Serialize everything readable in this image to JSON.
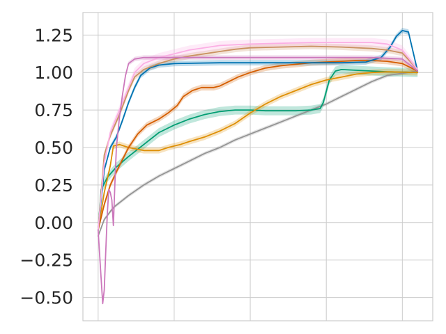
{
  "chart_data": {
    "type": "line",
    "title": "",
    "xlabel": "",
    "ylabel": "",
    "xlim": [
      -0.05,
      1.1
    ],
    "ylim": [
      -0.655,
      1.4
    ],
    "xticks": [
      0,
      0.25,
      0.5,
      0.75,
      1.0
    ],
    "yticks": [
      -0.5,
      -0.25,
      0.0,
      0.25,
      0.5,
      0.75,
      1.0,
      1.25
    ],
    "ytick_labels": [
      "−0.50",
      "−0.25",
      "0.00",
      "0.25",
      "0.50",
      "0.75",
      "1.00",
      "1.25"
    ],
    "grid": true,
    "series": [
      {
        "color": "#949494",
        "band": 0.012,
        "points": [
          [
            0,
            -0.09
          ],
          [
            0.02,
            0.02
          ],
          [
            0.05,
            0.1
          ],
          [
            0.1,
            0.18
          ],
          [
            0.15,
            0.25
          ],
          [
            0.2,
            0.31
          ],
          [
            0.25,
            0.36
          ],
          [
            0.3,
            0.41
          ],
          [
            0.35,
            0.46
          ],
          [
            0.4,
            0.5
          ],
          [
            0.45,
            0.55
          ],
          [
            0.5,
            0.59
          ],
          [
            0.55,
            0.63
          ],
          [
            0.6,
            0.67
          ],
          [
            0.65,
            0.71
          ],
          [
            0.7,
            0.75
          ],
          [
            0.75,
            0.79
          ],
          [
            0.8,
            0.84
          ],
          [
            0.85,
            0.89
          ],
          [
            0.9,
            0.94
          ],
          [
            0.95,
            0.98
          ],
          [
            1.05,
            1.01
          ]
        ]
      },
      {
        "color": "#029e73",
        "band": 0.03,
        "points": [
          [
            0,
            -0.05
          ],
          [
            0.01,
            0.22
          ],
          [
            0.03,
            0.3
          ],
          [
            0.06,
            0.37
          ],
          [
            0.1,
            0.44
          ],
          [
            0.15,
            0.52
          ],
          [
            0.2,
            0.6
          ],
          [
            0.25,
            0.65
          ],
          [
            0.3,
            0.69
          ],
          [
            0.35,
            0.72
          ],
          [
            0.4,
            0.74
          ],
          [
            0.45,
            0.75
          ],
          [
            0.5,
            0.75
          ],
          [
            0.55,
            0.745
          ],
          [
            0.6,
            0.745
          ],
          [
            0.65,
            0.745
          ],
          [
            0.7,
            0.75
          ],
          [
            0.73,
            0.76
          ],
          [
            0.74,
            0.8
          ],
          [
            0.76,
            0.95
          ],
          [
            0.78,
            1.01
          ],
          [
            0.8,
            1.02
          ],
          [
            0.85,
            1.015
          ],
          [
            0.9,
            1.01
          ],
          [
            0.95,
            1.005
          ],
          [
            1.05,
            1.0
          ]
        ]
      },
      {
        "color": "#de8f05",
        "band": 0.02,
        "points": [
          [
            0,
            -0.05
          ],
          [
            0.02,
            0.2
          ],
          [
            0.04,
            0.38
          ],
          [
            0.05,
            0.51
          ],
          [
            0.07,
            0.52
          ],
          [
            0.1,
            0.5
          ],
          [
            0.15,
            0.48
          ],
          [
            0.2,
            0.48
          ],
          [
            0.23,
            0.5
          ],
          [
            0.27,
            0.52
          ],
          [
            0.3,
            0.54
          ],
          [
            0.35,
            0.57
          ],
          [
            0.4,
            0.61
          ],
          [
            0.45,
            0.66
          ],
          [
            0.5,
            0.73
          ],
          [
            0.55,
            0.79
          ],
          [
            0.6,
            0.84
          ],
          [
            0.65,
            0.88
          ],
          [
            0.7,
            0.92
          ],
          [
            0.75,
            0.95
          ],
          [
            0.8,
            0.97
          ],
          [
            0.85,
            0.99
          ],
          [
            0.9,
            1.0
          ],
          [
            0.95,
            1.005
          ],
          [
            1.05,
            1.0
          ]
        ]
      },
      {
        "color": "#d55e00",
        "band": 0.02,
        "points": [
          [
            0,
            -0.05
          ],
          [
            0.02,
            0.12
          ],
          [
            0.04,
            0.25
          ],
          [
            0.07,
            0.38
          ],
          [
            0.1,
            0.5
          ],
          [
            0.13,
            0.59
          ],
          [
            0.16,
            0.65
          ],
          [
            0.2,
            0.69
          ],
          [
            0.23,
            0.73
          ],
          [
            0.26,
            0.78
          ],
          [
            0.28,
            0.84
          ],
          [
            0.31,
            0.88
          ],
          [
            0.34,
            0.9
          ],
          [
            0.38,
            0.9
          ],
          [
            0.4,
            0.91
          ],
          [
            0.43,
            0.94
          ],
          [
            0.46,
            0.97
          ],
          [
            0.5,
            1.0
          ],
          [
            0.55,
            1.03
          ],
          [
            0.6,
            1.045
          ],
          [
            0.65,
            1.055
          ],
          [
            0.7,
            1.065
          ],
          [
            0.75,
            1.07
          ],
          [
            0.8,
            1.075
          ],
          [
            0.85,
            1.08
          ],
          [
            0.9,
            1.08
          ],
          [
            0.95,
            1.075
          ],
          [
            1.0,
            1.06
          ],
          [
            1.05,
            1.01
          ]
        ]
      },
      {
        "color": "#0173b2",
        "band": 0.018,
        "points": [
          [
            0,
            -0.05
          ],
          [
            0.02,
            0.35
          ],
          [
            0.04,
            0.5
          ],
          [
            0.06,
            0.57
          ],
          [
            0.08,
            0.68
          ],
          [
            0.1,
            0.8
          ],
          [
            0.12,
            0.9
          ],
          [
            0.14,
            0.98
          ],
          [
            0.17,
            1.03
          ],
          [
            0.2,
            1.05
          ],
          [
            0.25,
            1.06
          ],
          [
            0.4,
            1.065
          ],
          [
            0.6,
            1.065
          ],
          [
            0.8,
            1.065
          ],
          [
            0.88,
            1.07
          ],
          [
            0.93,
            1.1
          ],
          [
            0.96,
            1.17
          ],
          [
            0.98,
            1.24
          ],
          [
            1.0,
            1.28
          ],
          [
            1.02,
            1.27
          ],
          [
            1.05,
            1.01
          ]
        ]
      },
      {
        "color": "#ca9161",
        "band": 0.02,
        "points": [
          [
            0,
            -0.05
          ],
          [
            0.02,
            0.45
          ],
          [
            0.04,
            0.58
          ],
          [
            0.07,
            0.72
          ],
          [
            0.1,
            0.88
          ],
          [
            0.12,
            0.97
          ],
          [
            0.15,
            1.02
          ],
          [
            0.2,
            1.06
          ],
          [
            0.25,
            1.09
          ],
          [
            0.3,
            1.11
          ],
          [
            0.35,
            1.125
          ],
          [
            0.4,
            1.14
          ],
          [
            0.45,
            1.155
          ],
          [
            0.5,
            1.165
          ],
          [
            0.6,
            1.17
          ],
          [
            0.7,
            1.175
          ],
          [
            0.8,
            1.17
          ],
          [
            0.9,
            1.16
          ],
          [
            0.95,
            1.15
          ],
          [
            1.0,
            1.13
          ],
          [
            1.05,
            1.02
          ]
        ]
      },
      {
        "color": "#fbafe4",
        "band": 0.03,
        "points": [
          [
            0,
            -0.05
          ],
          [
            0.02,
            0.4
          ],
          [
            0.04,
            0.6
          ],
          [
            0.07,
            0.75
          ],
          [
            0.1,
            0.9
          ],
          [
            0.12,
            1.0
          ],
          [
            0.15,
            1.06
          ],
          [
            0.2,
            1.1
          ],
          [
            0.3,
            1.15
          ],
          [
            0.4,
            1.18
          ],
          [
            0.5,
            1.19
          ],
          [
            0.6,
            1.195
          ],
          [
            0.7,
            1.2
          ],
          [
            0.8,
            1.2
          ],
          [
            0.9,
            1.2
          ],
          [
            0.95,
            1.19
          ],
          [
            1.0,
            1.15
          ],
          [
            1.05,
            1.02
          ]
        ]
      },
      {
        "color": "#cc78bc",
        "band": 0.015,
        "points": [
          [
            0,
            -0.05
          ],
          [
            0.01,
            -0.38
          ],
          [
            0.015,
            -0.54
          ],
          [
            0.02,
            -0.45
          ],
          [
            0.025,
            -0.2
          ],
          [
            0.03,
            0.05
          ],
          [
            0.035,
            0.22
          ],
          [
            0.04,
            0.2
          ],
          [
            0.045,
            0.15
          ],
          [
            0.05,
            -0.02
          ],
          [
            0.055,
            0.25
          ],
          [
            0.06,
            0.5
          ],
          [
            0.07,
            0.7
          ],
          [
            0.08,
            0.85
          ],
          [
            0.09,
            0.98
          ],
          [
            0.1,
            1.06
          ],
          [
            0.12,
            1.09
          ],
          [
            0.15,
            1.1
          ],
          [
            0.3,
            1.1
          ],
          [
            0.5,
            1.1
          ],
          [
            0.7,
            1.1
          ],
          [
            0.9,
            1.1
          ],
          [
            1.0,
            1.09
          ],
          [
            1.05,
            1.01
          ]
        ]
      }
    ]
  }
}
